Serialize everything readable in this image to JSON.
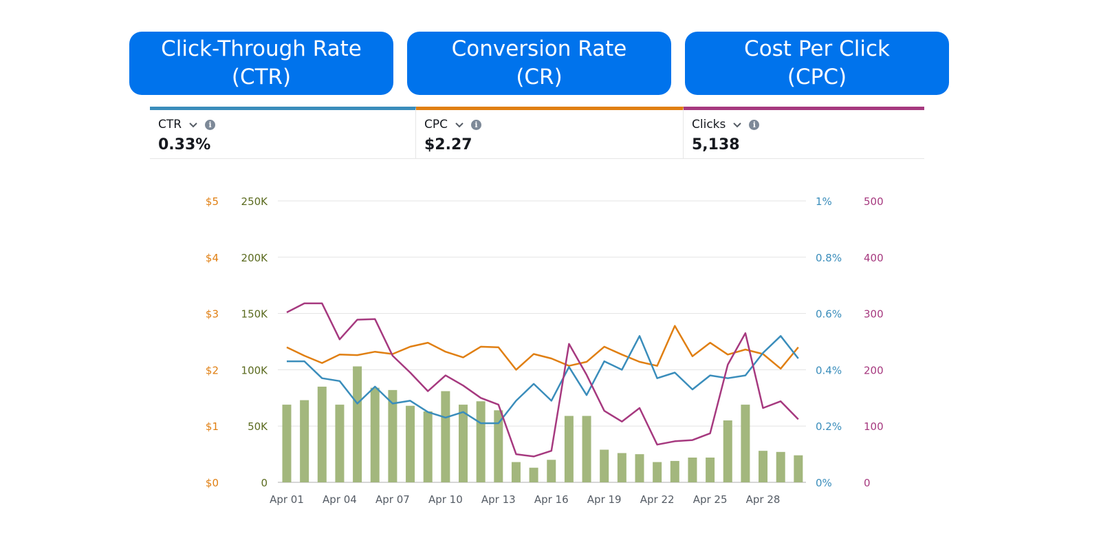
{
  "header_pills": [
    {
      "line1": "Click-Through Rate",
      "line2": "(CTR)"
    },
    {
      "line1": "Conversion Rate",
      "line2": "(CR)"
    },
    {
      "line1": "Cost Per Click",
      "line2": "(CPC)"
    }
  ],
  "metrics": [
    {
      "label": "CTR",
      "value": "0.33%",
      "color": "#3a8dbb"
    },
    {
      "label": "CPC",
      "value": "$2.27",
      "color": "#e07f12"
    },
    {
      "label": "Clicks",
      "value": "5,138",
      "color": "#a6397f"
    }
  ],
  "colors": {
    "pill": "#0073ec",
    "impressions_bars": "#a3b77d",
    "cpc_line": "#e07f12",
    "ctr_line": "#3a8dbb",
    "clicks_line": "#a6397f",
    "grid": "#e3e3e3",
    "impressions_axis_text": "#5a6a1e"
  },
  "chart_data": {
    "type": "bar",
    "x_tick_labels": [
      "Apr 01",
      "Apr 04",
      "Apr 07",
      "Apr 10",
      "Apr 13",
      "Apr 16",
      "Apr 19",
      "Apr 22",
      "Apr 25",
      "Apr 28"
    ],
    "x_tick_every": 3,
    "day_count": 30,
    "y_axes": {
      "cpc": {
        "labels": [
          "$0",
          "$1",
          "$2",
          "$3",
          "$4",
          "$5"
        ],
        "range": [
          0,
          5
        ]
      },
      "impressions": {
        "labels": [
          "0",
          "50K",
          "100K",
          "150K",
          "200K",
          "250K"
        ],
        "range": [
          0,
          250000
        ]
      },
      "ctr": {
        "labels": [
          "0%",
          "0.2%",
          "0.4%",
          "0.6%",
          "0.8%",
          "1%"
        ],
        "range": [
          0,
          1
        ]
      },
      "clicks": {
        "labels": [
          "0",
          "100",
          "200",
          "300",
          "400",
          "500"
        ],
        "range": [
          0,
          500
        ]
      }
    },
    "grid": true,
    "series": [
      {
        "key": "impressions",
        "type": "bar",
        "values": [
          69000,
          73000,
          85000,
          69000,
          103000,
          84000,
          82000,
          68000,
          63000,
          81000,
          69000,
          72000,
          64000,
          18000,
          13000,
          20000,
          59000,
          59000,
          29000,
          26000,
          25000,
          18000,
          19000,
          22000,
          22000,
          55000,
          69000,
          28000,
          27000,
          24000
        ]
      },
      {
        "key": "cpc",
        "type": "line",
        "values": [
          2.4,
          2.25,
          2.12,
          2.27,
          2.26,
          2.32,
          2.28,
          2.41,
          2.48,
          2.32,
          2.22,
          2.41,
          2.4,
          2.0,
          2.28,
          2.2,
          2.07,
          2.14,
          2.41,
          2.27,
          2.14,
          2.07,
          2.78,
          2.24,
          2.48,
          2.27,
          2.36,
          2.28,
          2.02,
          2.4
        ]
      },
      {
        "key": "ctr",
        "type": "line",
        "values": [
          0.43,
          0.43,
          0.37,
          0.36,
          0.28,
          0.34,
          0.28,
          0.29,
          0.25,
          0.23,
          0.25,
          0.21,
          0.21,
          0.29,
          0.35,
          0.29,
          0.41,
          0.31,
          0.43,
          0.4,
          0.52,
          0.37,
          0.39,
          0.33,
          0.38,
          0.37,
          0.38,
          0.46,
          0.52,
          0.44
        ]
      },
      {
        "key": "clicks",
        "type": "line",
        "values": [
          302,
          318,
          318,
          254,
          289,
          290,
          225,
          195,
          162,
          190,
          172,
          150,
          138,
          50,
          46,
          56,
          246,
          191,
          127,
          108,
          132,
          67,
          73,
          75,
          87,
          209,
          265,
          132,
          144,
          112
        ]
      }
    ]
  }
}
